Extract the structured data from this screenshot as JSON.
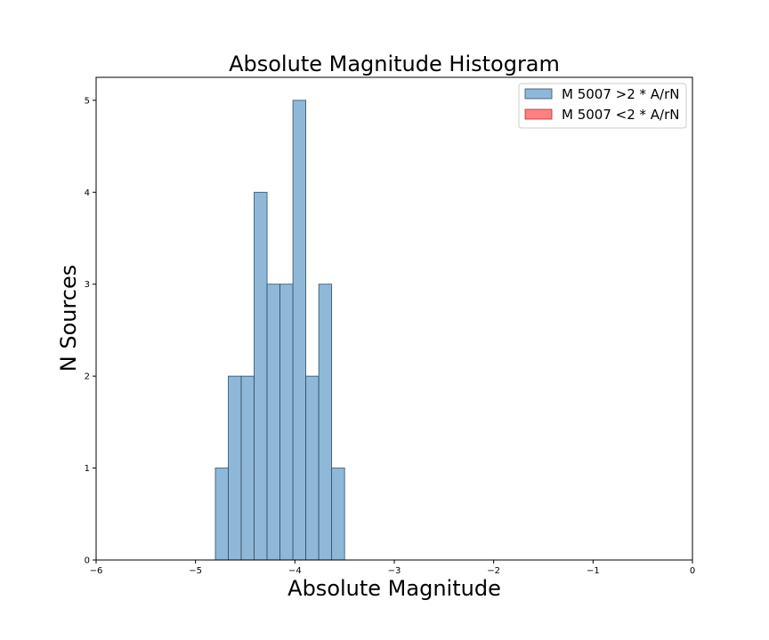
{
  "chart_data": {
    "type": "bar",
    "subtype": "histogram",
    "title": "Absolute Magnitude Histogram",
    "xlabel": "Absolute Magnitude",
    "ylabel": "N Sources",
    "xlim": [
      -6,
      0
    ],
    "ylim": [
      0,
      5.25
    ],
    "xticks": [
      -6,
      -5,
      -4,
      -3,
      -2,
      -1,
      0
    ],
    "xtick_labels": [
      "−6",
      "−5",
      "−4",
      "−3",
      "−2",
      "−1",
      "0"
    ],
    "yticks": [
      0,
      1,
      2,
      3,
      4,
      5
    ],
    "ytick_labels": [
      "0",
      "1",
      "2",
      "3",
      "4",
      "5"
    ],
    "grid": false,
    "legend_position": "top-right",
    "series": [
      {
        "name": "M 5007 >2 * A/rN",
        "color": "#8fb8d8",
        "edge_color": "#2f4f66",
        "bins": [
          {
            "x0": -4.8,
            "x1": -4.67,
            "count": 1
          },
          {
            "x0": -4.67,
            "x1": -4.54,
            "count": 2
          },
          {
            "x0": -4.54,
            "x1": -4.41,
            "count": 2
          },
          {
            "x0": -4.41,
            "x1": -4.28,
            "count": 4
          },
          {
            "x0": -4.28,
            "x1": -4.15,
            "count": 3
          },
          {
            "x0": -4.15,
            "x1": -4.02,
            "count": 3
          },
          {
            "x0": -4.02,
            "x1": -3.89,
            "count": 5
          },
          {
            "x0": -3.89,
            "x1": -3.76,
            "count": 2
          },
          {
            "x0": -3.76,
            "x1": -3.63,
            "count": 3
          },
          {
            "x0": -3.63,
            "x1": -3.5,
            "count": 1
          }
        ]
      },
      {
        "name": "M 5007 <2 * A/rN",
        "color": "#ff8080",
        "edge_color": "#b03030",
        "bins": []
      }
    ]
  }
}
